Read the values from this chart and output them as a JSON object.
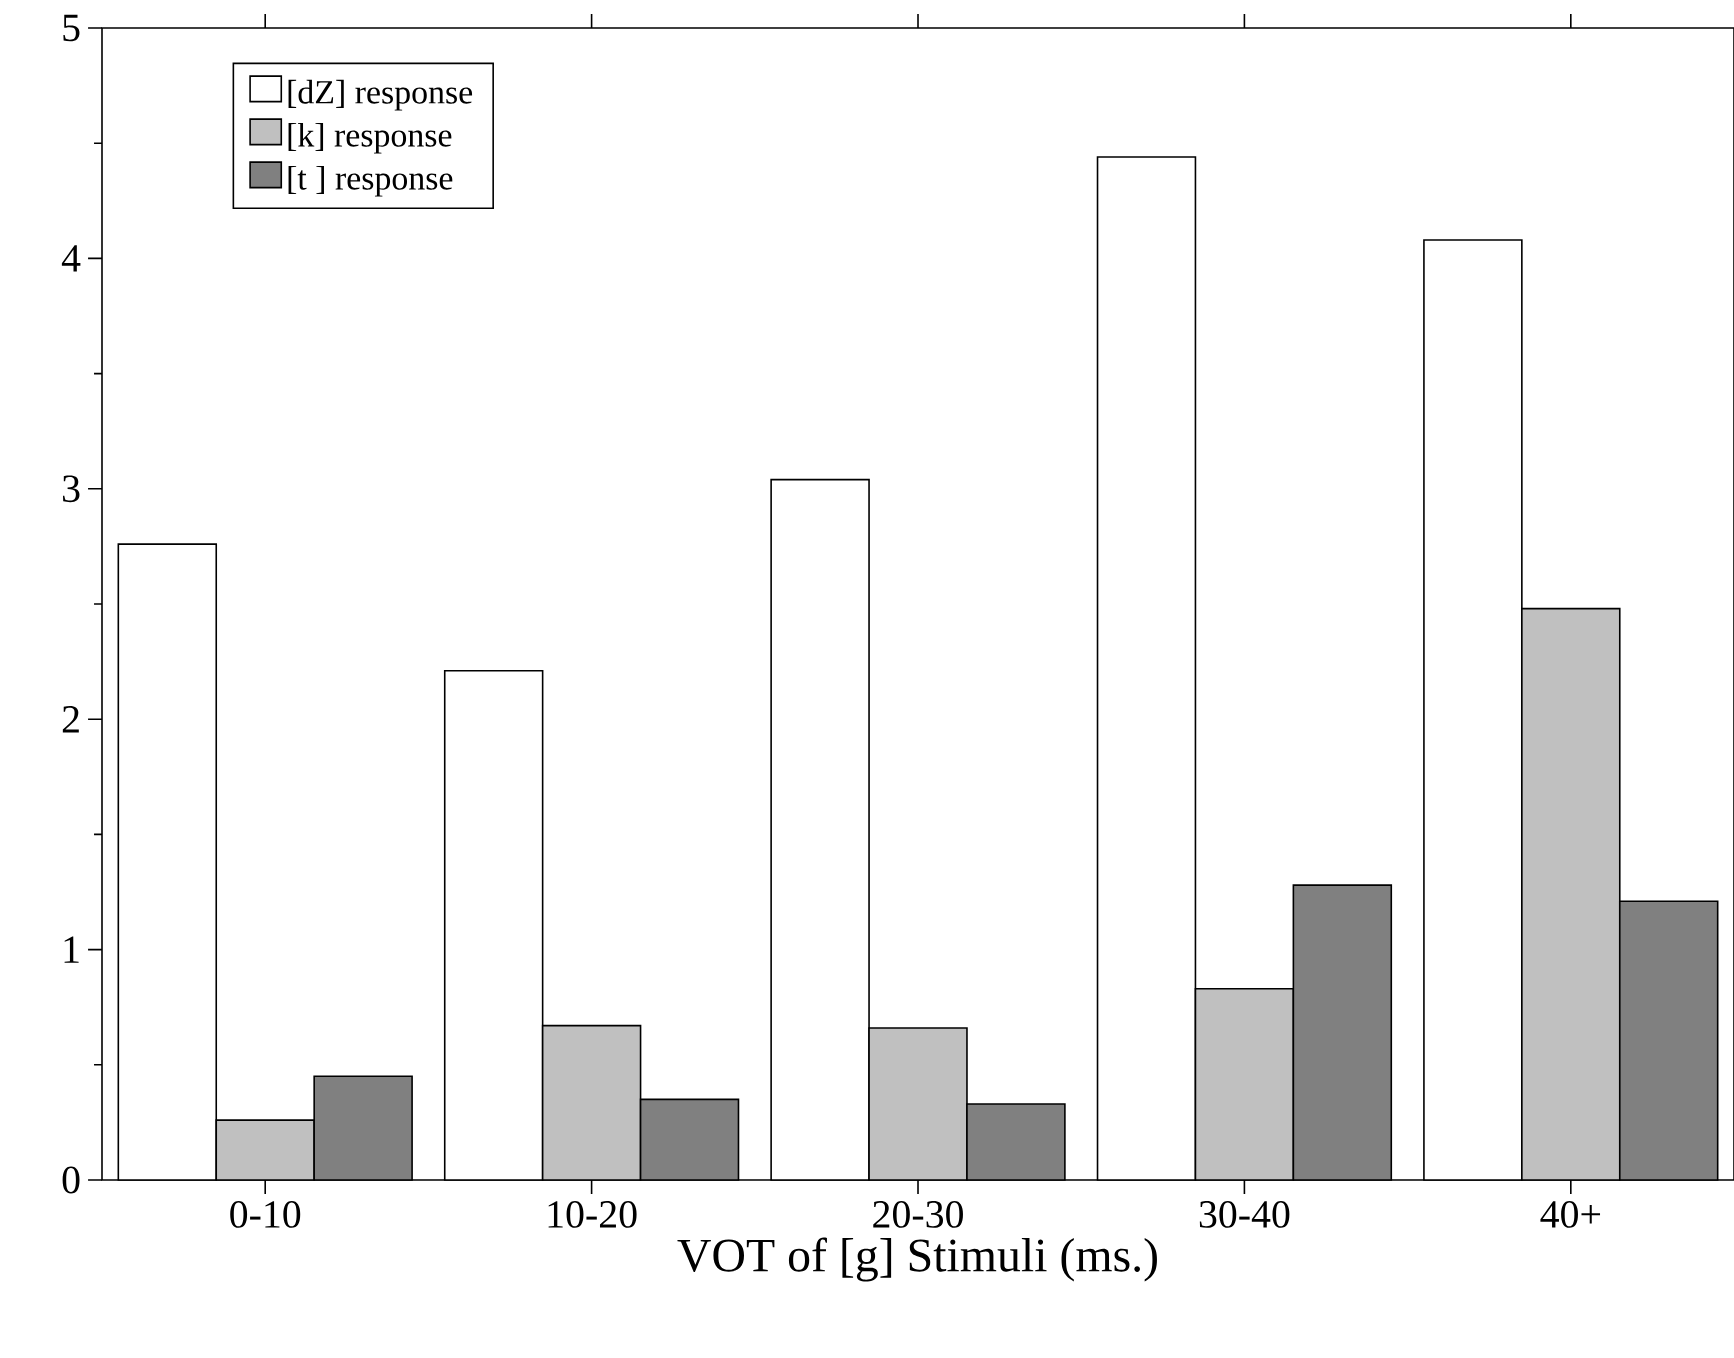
{
  "chart_data": {
    "type": "bar",
    "xlabel": "VOT of [g] Stimuli (ms.)",
    "categories": [
      "0-10",
      "10-20",
      "20-30",
      "30-40",
      "40+"
    ],
    "series": [
      {
        "name": "[dZ] response",
        "color": "#ffffff",
        "values": [
          2.76,
          2.21,
          3.04,
          4.44,
          4.08
        ]
      },
      {
        "name": "[k] response",
        "color": "#c0c0c0",
        "values": [
          0.26,
          0.67,
          0.66,
          0.83,
          2.48
        ]
      },
      {
        "name": "[t   ] response",
        "color": "#808080",
        "values": [
          0.45,
          0.35,
          0.33,
          1.28,
          1.21
        ]
      }
    ],
    "ylim": [
      0,
      5
    ],
    "yticks": [
      0,
      1,
      2,
      3,
      4,
      5
    ],
    "grid": false,
    "legend": "top left"
  }
}
